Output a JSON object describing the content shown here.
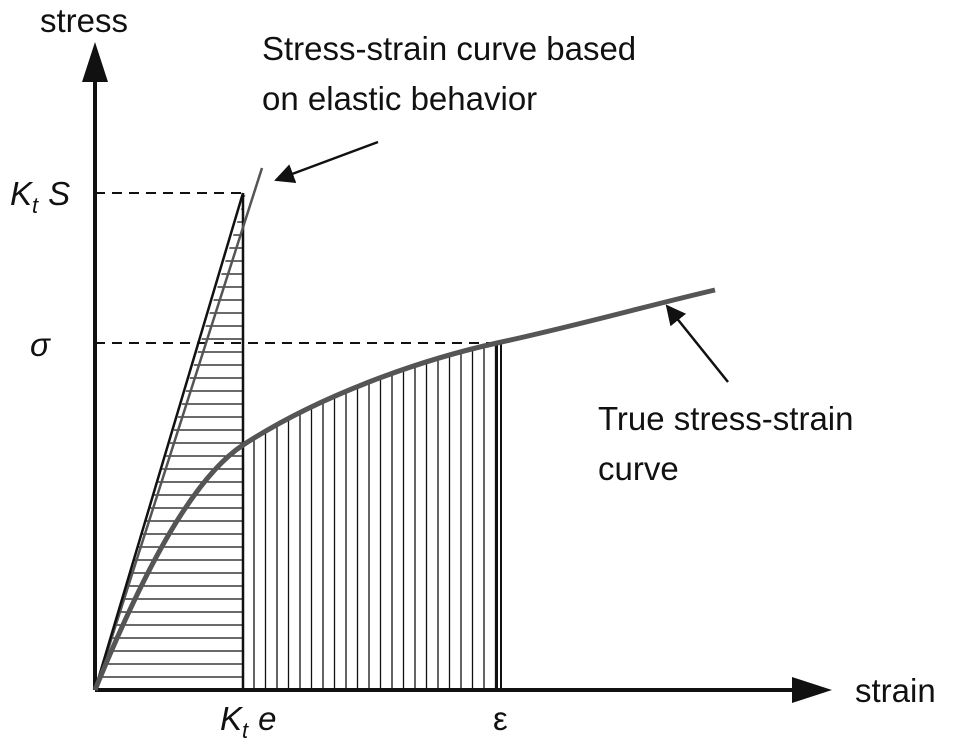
{
  "axes": {
    "y_label": "stress",
    "x_label": "strain"
  },
  "annotations": [
    {
      "lines": [
        "Stress-strain curve based",
        "on elastic behavior"
      ]
    },
    {
      "lines": [
        "True stress-strain",
        "curve"
      ]
    }
  ],
  "markers": {
    "kt_s": {
      "symbol": "K",
      "subscript": "t",
      "variable": "S"
    },
    "sigma": "σ",
    "kt_e": {
      "symbol": "K",
      "subscript": "t",
      "variable": "e"
    },
    "epsilon": "ε"
  }
}
